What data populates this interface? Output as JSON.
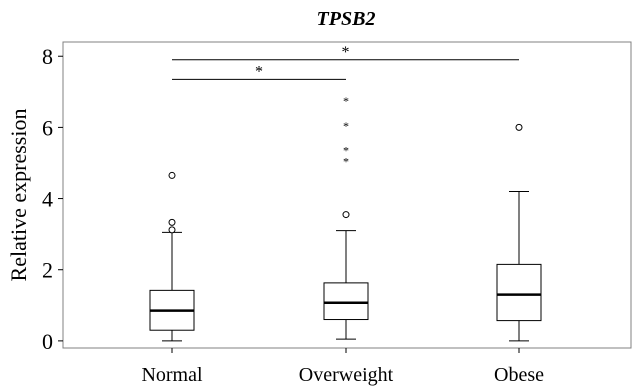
{
  "chart_data": {
    "type": "boxplot",
    "title": "TPSB2",
    "xlabel": "",
    "ylabel": "Relative expression",
    "categories": [
      "Normal",
      "Overweight",
      "Obese"
    ],
    "ylim": [
      -0.2,
      8.4
    ],
    "yticks": [
      "0",
      "2",
      "4",
      "6",
      "8"
    ],
    "boxes": [
      {
        "category": "Normal",
        "whisker_low": 0.0,
        "q1": 0.3,
        "median": 0.85,
        "q3": 1.42,
        "whisker_high": 3.05,
        "outliers": [
          3.12,
          3.33,
          4.65
        ],
        "extremes": []
      },
      {
        "category": "Overweight",
        "whisker_low": 0.05,
        "q1": 0.6,
        "median": 1.07,
        "q3": 1.63,
        "whisker_high": 3.1,
        "outliers": [
          3.55
        ],
        "extremes": [
          5.1,
          5.4,
          6.1,
          6.8
        ]
      },
      {
        "category": "Obese",
        "whisker_low": 0.0,
        "q1": 0.57,
        "median": 1.3,
        "q3": 2.15,
        "whisker_high": 4.2,
        "outliers": [
          6.0
        ],
        "extremes": []
      }
    ],
    "significance": [
      {
        "from": "Normal",
        "to": "Obese",
        "y": 7.9,
        "label": "*"
      },
      {
        "from": "Normal",
        "to": "Overweight",
        "y": 7.35,
        "label": "*"
      }
    ],
    "outlier_markers": {
      "outlier": "circle",
      "extreme": "*"
    },
    "grid": false,
    "colors": {
      "box_fill": "#ffffff",
      "stroke": "#000000",
      "frame": "#808080"
    }
  }
}
